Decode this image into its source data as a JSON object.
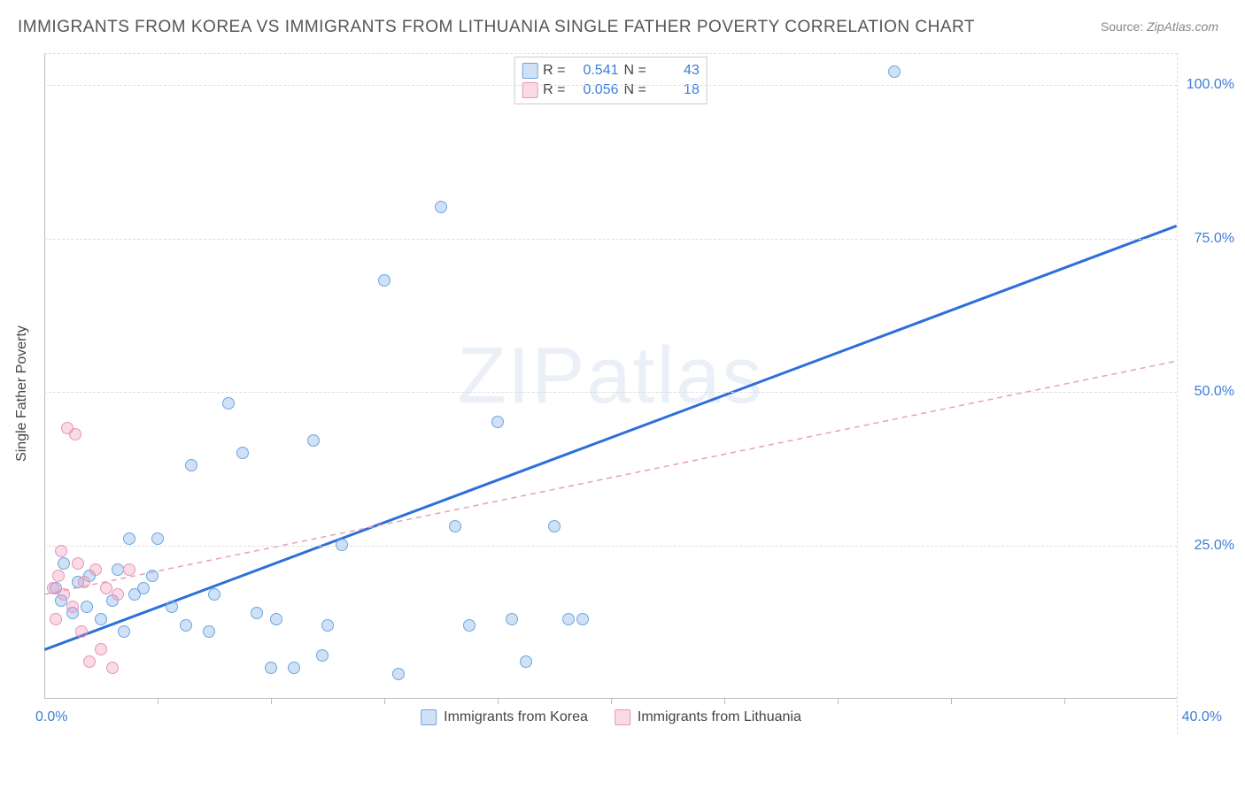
{
  "title": "IMMIGRANTS FROM KOREA VS IMMIGRANTS FROM LITHUANIA SINGLE FATHER POVERTY CORRELATION CHART",
  "source": {
    "label": "Source:",
    "value": "ZipAtlas.com"
  },
  "watermark": {
    "zip": "ZIP",
    "atlas": "atlas"
  },
  "chart": {
    "type": "scatter",
    "ylabel": "Single Father Poverty",
    "xlim": [
      0,
      40
    ],
    "ylim": [
      0,
      105
    ],
    "x_ticks_major": [
      "0.0%",
      "40.0%"
    ],
    "x_tick_minor_positions": [
      4,
      8,
      12,
      16,
      20,
      24,
      28,
      32,
      36
    ],
    "y_ticks": [
      {
        "v": 25,
        "label": "25.0%"
      },
      {
        "v": 50,
        "label": "50.0%"
      },
      {
        "v": 75,
        "label": "75.0%"
      },
      {
        "v": 100,
        "label": "100.0%"
      }
    ],
    "grid_color": "#dddddd",
    "axis_color": "#bbbbbb",
    "background_color": "#ffffff",
    "label_fontsize": 16,
    "tick_color": "#3b7dd8",
    "series": [
      {
        "name": "Immigrants from Korea",
        "color_fill": "rgba(120,170,230,0.35)",
        "color_stroke": "#6aa6e0",
        "marker_radius": 7,
        "R": "0.541",
        "N": "43",
        "trend": {
          "x1": 0,
          "y1": 8,
          "x2": 40,
          "y2": 77,
          "color": "#2d6fd8",
          "width": 3,
          "dash": "none"
        },
        "points": [
          [
            0.4,
            18
          ],
          [
            0.6,
            16
          ],
          [
            0.7,
            22
          ],
          [
            1.0,
            14
          ],
          [
            1.2,
            19
          ],
          [
            1.5,
            15
          ],
          [
            1.6,
            20
          ],
          [
            2.0,
            13
          ],
          [
            2.4,
            16
          ],
          [
            2.6,
            21
          ],
          [
            3.0,
            26
          ],
          [
            3.2,
            17
          ],
          [
            3.5,
            18
          ],
          [
            3.8,
            20
          ],
          [
            4.5,
            15
          ],
          [
            5.0,
            12
          ],
          [
            5.2,
            38
          ],
          [
            5.8,
            11
          ],
          [
            6.0,
            17
          ],
          [
            6.5,
            48
          ],
          [
            7.0,
            40
          ],
          [
            7.5,
            14
          ],
          [
            8.0,
            5
          ],
          [
            8.2,
            13
          ],
          [
            8.8,
            5
          ],
          [
            9.5,
            42
          ],
          [
            9.8,
            7
          ],
          [
            10.0,
            12
          ],
          [
            10.5,
            25
          ],
          [
            12.0,
            68
          ],
          [
            12.5,
            4
          ],
          [
            14.0,
            80
          ],
          [
            14.5,
            28
          ],
          [
            15.0,
            12
          ],
          [
            16.0,
            45
          ],
          [
            16.5,
            13
          ],
          [
            17.0,
            6
          ],
          [
            18.0,
            28
          ],
          [
            18.5,
            13
          ],
          [
            19.0,
            13
          ],
          [
            30.0,
            102
          ],
          [
            4.0,
            26
          ],
          [
            2.8,
            11
          ]
        ]
      },
      {
        "name": "Immigrants from Lithuania",
        "color_fill": "rgba(240,150,180,0.35)",
        "color_stroke": "#e895b5",
        "marker_radius": 7,
        "R": "0.056",
        "N": "18",
        "trend": {
          "x1": 0,
          "y1": 17,
          "x2": 40,
          "y2": 55,
          "color": "#e8a0b8",
          "width": 1.5,
          "dash": "6 5"
        },
        "points": [
          [
            0.3,
            18
          ],
          [
            0.4,
            13
          ],
          [
            0.5,
            20
          ],
          [
            0.6,
            24
          ],
          [
            0.7,
            17
          ],
          [
            0.8,
            44
          ],
          [
            1.0,
            15
          ],
          [
            1.1,
            43
          ],
          [
            1.2,
            22
          ],
          [
            1.3,
            11
          ],
          [
            1.4,
            19
          ],
          [
            1.6,
            6
          ],
          [
            1.8,
            21
          ],
          [
            2.0,
            8
          ],
          [
            2.2,
            18
          ],
          [
            2.4,
            5
          ],
          [
            2.6,
            17
          ],
          [
            3.0,
            21
          ]
        ]
      }
    ],
    "legend_top_labels": {
      "R": "R  =",
      "N": "N  ="
    }
  }
}
